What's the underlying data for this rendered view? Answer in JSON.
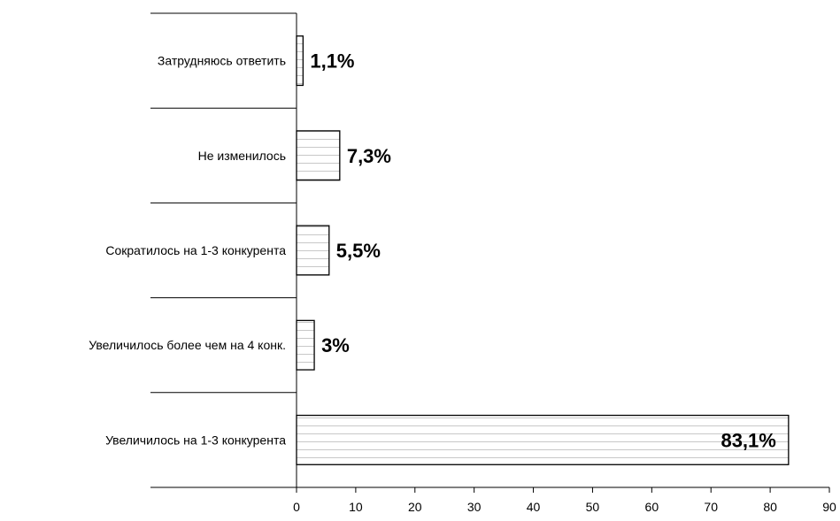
{
  "chart_data": {
    "type": "bar",
    "orientation": "horizontal",
    "categories": [
      "Затрудняюсь ответить",
      "Не изменилось",
      "Сократилось на 1-3 конкурента",
      "Увеличилось более чем на 4 конк.",
      "Увеличилось на 1-3 конкурента"
    ],
    "values": [
      1.1,
      7.3,
      5.5,
      3,
      83.1
    ],
    "value_labels": [
      "1,1%",
      "7,3%",
      "5,5%",
      "3%",
      "83,1%"
    ],
    "title": "",
    "xlabel": "",
    "ylabel": "",
    "xlim": [
      0,
      90
    ],
    "xticks": [
      0,
      10,
      20,
      30,
      40,
      50,
      60,
      70,
      80,
      90
    ],
    "grid": false,
    "legend": "none",
    "bar_fill": "#ffffff",
    "bar_stripe_color": "#c8c8c8",
    "bar_stroke": "#000000"
  }
}
